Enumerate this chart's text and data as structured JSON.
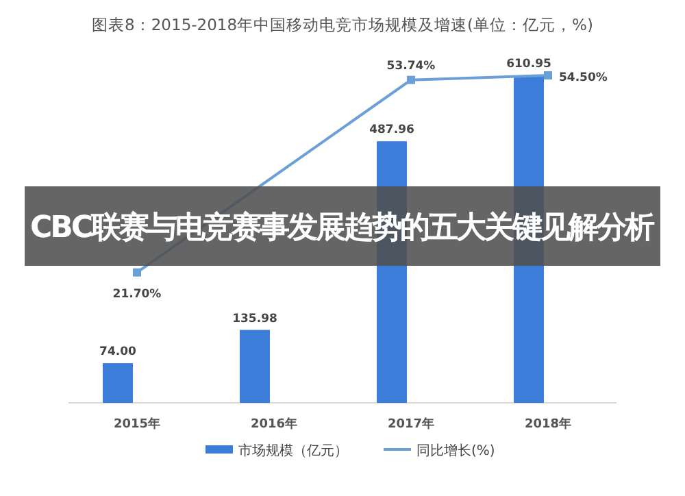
{
  "chart_data": {
    "type": "bar",
    "title": "图表8：2015-2018年中国移动电竞市场规模及增速(单位：亿元，%)",
    "categories": [
      "2015年",
      "2016年",
      "2017年",
      "2018年"
    ],
    "series": [
      {
        "name": "市场规模（亿元）",
        "color": "#3b7dd8",
        "values": [
          74.0,
          135.98,
          487.96,
          610.95
        ],
        "value_labels": [
          "74.00",
          "135.98",
          "487.96",
          "610.95"
        ]
      },
      {
        "name": "同比增长(%)",
        "type": "line",
        "axis": "y2",
        "color": "#6a9fd8",
        "values": [
          21.7,
          null,
          53.74,
          54.5
        ],
        "value_labels": [
          "21.70%",
          null,
          "53.74%",
          "54.50%"
        ]
      }
    ],
    "legend": "bottom",
    "marker": "square",
    "grid": false,
    "annotations": [
      "CBC联赛与电竞赛事发展趋势的五大关键见解分析"
    ]
  }
}
